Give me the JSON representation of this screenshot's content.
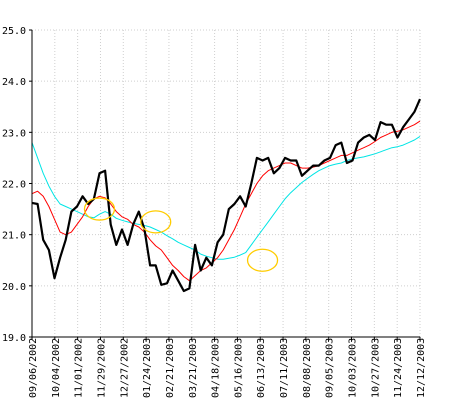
{
  "chart_data": {
    "type": "line",
    "ylim": [
      19.0,
      25.0
    ],
    "y_ticks": [
      "19.0",
      "20.0",
      "21.0",
      "22.0",
      "23.0",
      "24.0",
      "25.0"
    ],
    "x_tick_labels": [
      "09/06/2002",
      "10/04/2002",
      "11/01/2002",
      "11/29/2002",
      "12/27/2002",
      "01/24/2003",
      "02/21/2003",
      "03/21/2003",
      "04/18/2003",
      "05/16/2003",
      "06/13/2003",
      "07/11/2003",
      "08/08/2003",
      "09/05/2003",
      "10/03/2003",
      "10/27/2003",
      "11/24/2003",
      "12/12/2003"
    ],
    "grid": true,
    "series": [
      {
        "color": "#000000",
        "values": [
          21.62,
          21.6,
          20.9,
          20.7,
          20.15,
          20.55,
          20.9,
          21.45,
          21.55,
          21.75,
          21.6,
          21.7,
          22.2,
          22.25,
          21.2,
          20.8,
          21.1,
          20.8,
          21.2,
          21.45,
          21.1,
          20.4,
          20.4,
          20.02,
          20.05,
          20.3,
          20.1,
          19.9,
          19.95,
          20.8,
          20.3,
          20.55,
          20.4,
          20.85,
          21.0,
          21.5,
          21.6,
          21.75,
          21.55,
          22.0,
          22.5,
          22.45,
          22.5,
          22.2,
          22.3,
          22.5,
          22.45,
          22.45,
          22.15,
          22.25,
          22.35,
          22.35,
          22.45,
          22.5,
          22.75,
          22.8,
          22.4,
          22.45,
          22.8,
          22.9,
          22.95,
          22.85,
          23.2,
          23.15,
          23.15,
          22.9,
          23.1,
          23.25,
          23.4,
          23.65
        ]
      },
      {
        "color": "#ff0000",
        "values": [
          21.8,
          21.85,
          21.75,
          21.55,
          21.3,
          21.05,
          21.0,
          21.05,
          21.2,
          21.35,
          21.55,
          21.7,
          21.75,
          21.72,
          21.6,
          21.45,
          21.35,
          21.3,
          21.2,
          21.15,
          21.05,
          20.9,
          20.78,
          20.7,
          20.55,
          20.4,
          20.3,
          20.18,
          20.1,
          20.2,
          20.3,
          20.35,
          20.45,
          20.55,
          20.7,
          20.9,
          21.1,
          21.35,
          21.6,
          21.8,
          22.0,
          22.15,
          22.25,
          22.3,
          22.35,
          22.4,
          22.4,
          22.35,
          22.3,
          22.3,
          22.32,
          22.35,
          22.4,
          22.45,
          22.5,
          22.55,
          22.55,
          22.6,
          22.65,
          22.7,
          22.75,
          22.82,
          22.9,
          22.95,
          23.0,
          23.02,
          23.05,
          23.1,
          23.15,
          23.22
        ]
      },
      {
        "color": "#00e5e5",
        "values": [
          22.8,
          22.5,
          22.2,
          21.95,
          21.75,
          21.6,
          21.55,
          21.5,
          21.45,
          21.4,
          21.35,
          21.33,
          21.4,
          21.45,
          21.4,
          21.32,
          21.28,
          21.25,
          21.22,
          21.2,
          21.18,
          21.15,
          21.1,
          21.05,
          20.98,
          20.92,
          20.85,
          20.8,
          20.75,
          20.7,
          20.62,
          20.58,
          20.55,
          20.52,
          20.52,
          20.54,
          20.56,
          20.6,
          20.65,
          20.8,
          20.95,
          21.1,
          21.25,
          21.4,
          21.55,
          21.7,
          21.82,
          21.92,
          22.02,
          22.1,
          22.18,
          22.25,
          22.3,
          22.35,
          22.38,
          22.4,
          22.45,
          22.48,
          22.5,
          22.52,
          22.55,
          22.58,
          22.62,
          22.66,
          22.7,
          22.72,
          22.75,
          22.8,
          22.85,
          22.92
        ]
      }
    ],
    "markers": [
      {
        "color": "#ffcc00",
        "x_index": 12,
        "y": 21.5
      },
      {
        "color": "#ffcc00",
        "x_index": 22,
        "y": 21.25
      },
      {
        "color": "#ffcc00",
        "x_index": 41,
        "y": 20.5
      }
    ]
  }
}
